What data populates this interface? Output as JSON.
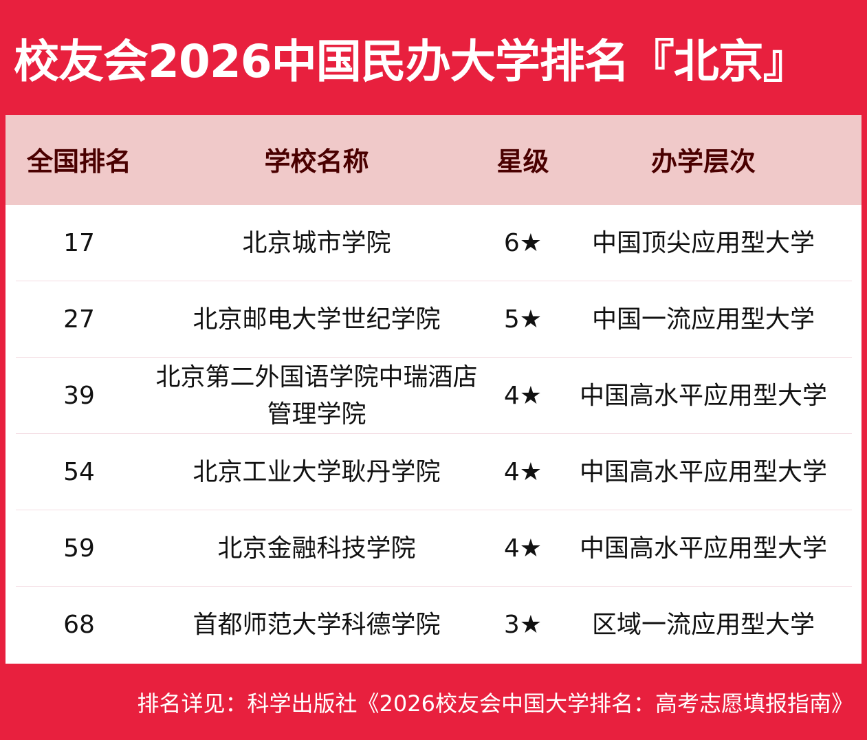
{
  "title": "校友会2026中国民办大学排名『北京』",
  "colors": {
    "brand_red": "#e8203e",
    "header_bg": "#f0c9c9",
    "header_text": "#4a0000"
  },
  "table": {
    "headers": [
      "全国排名",
      "学校名称",
      "星级",
      "办学层次"
    ],
    "rows": [
      {
        "rank": "17",
        "name": "北京城市学院",
        "stars": "6★",
        "level": "中国顶尖应用型大学"
      },
      {
        "rank": "27",
        "name": "北京邮电大学世纪学院",
        "stars": "5★",
        "level": "中国一流应用型大学"
      },
      {
        "rank": "39",
        "name": "北京第二外国语学院中瑞酒店管理学院",
        "stars": "4★",
        "level": "中国高水平应用型大学"
      },
      {
        "rank": "54",
        "name": "北京工业大学耿丹学院",
        "stars": "4★",
        "level": "中国高水平应用型大学"
      },
      {
        "rank": "59",
        "name": "北京金融科技学院",
        "stars": "4★",
        "level": "中国高水平应用型大学"
      },
      {
        "rank": "68",
        "name": "首都师范大学科德学院",
        "stars": "3★",
        "level": "区域一流应用型大学"
      }
    ]
  },
  "footer": "排名详见：科学出版社《2026校友会中国大学排名：高考志愿填报指南》"
}
